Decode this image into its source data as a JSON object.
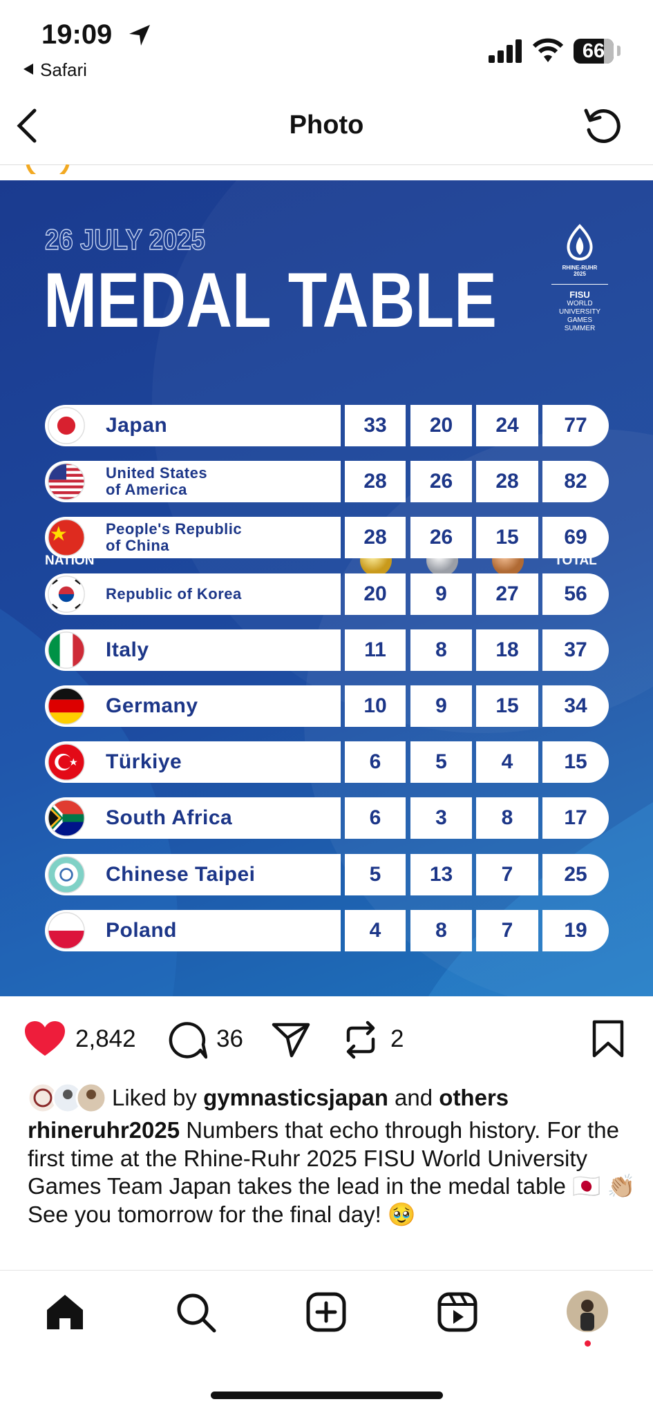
{
  "status": {
    "time": "19:09",
    "back": "Safari",
    "battery": "66"
  },
  "nav": {
    "title": "Photo"
  },
  "post_image": {
    "date": "26 JULY 2025",
    "title": "MEDAL TABLE",
    "logo": {
      "event": "RHINE-RUHR\n2025",
      "org": "FISU",
      "games": "WORLD\nUNIVERSITY\nGAMES\nSUMMER"
    },
    "table": {
      "headers": {
        "nation": "NATION",
        "total": "TOTAL"
      },
      "rows": [
        {
          "nation": "Japan",
          "gold": 33,
          "silver": 20,
          "bronze": 24,
          "total": 77
        },
        {
          "nation": "United States\nof America",
          "gold": 28,
          "silver": 26,
          "bronze": 28,
          "total": 82
        },
        {
          "nation": "People's Republic\nof China",
          "gold": 28,
          "silver": 26,
          "bronze": 15,
          "total": 69
        },
        {
          "nation": "Republic of Korea",
          "gold": 20,
          "silver": 9,
          "bronze": 27,
          "total": 56
        },
        {
          "nation": "Italy",
          "gold": 11,
          "silver": 8,
          "bronze": 18,
          "total": 37
        },
        {
          "nation": "Germany",
          "gold": 10,
          "silver": 9,
          "bronze": 15,
          "total": 34
        },
        {
          "nation": "Türkiye",
          "gold": 6,
          "silver": 5,
          "bronze": 4,
          "total": 15
        },
        {
          "nation": "South Africa",
          "gold": 6,
          "silver": 3,
          "bronze": 8,
          "total": 17
        },
        {
          "nation": "Chinese Taipei",
          "gold": 5,
          "silver": 13,
          "bronze": 7,
          "total": 25
        },
        {
          "nation": "Poland",
          "gold": 4,
          "silver": 8,
          "bronze": 7,
          "total": 19
        }
      ]
    }
  },
  "actions": {
    "likes": "2,842",
    "comments": "36",
    "reposts": "2"
  },
  "liked_by": {
    "prefix": "Liked by",
    "user": "gymnasticsjapan",
    "joiner": "and",
    "others": "others"
  },
  "caption": {
    "user": "rhineruhr2025",
    "text": "Numbers that echo through history. For the first time at the Rhine-Ruhr 2025 FISU World University Games Team Japan takes the lead in the medal table 🇯🇵 👏🏼 See you tomorrow for the final day! 🥹"
  }
}
